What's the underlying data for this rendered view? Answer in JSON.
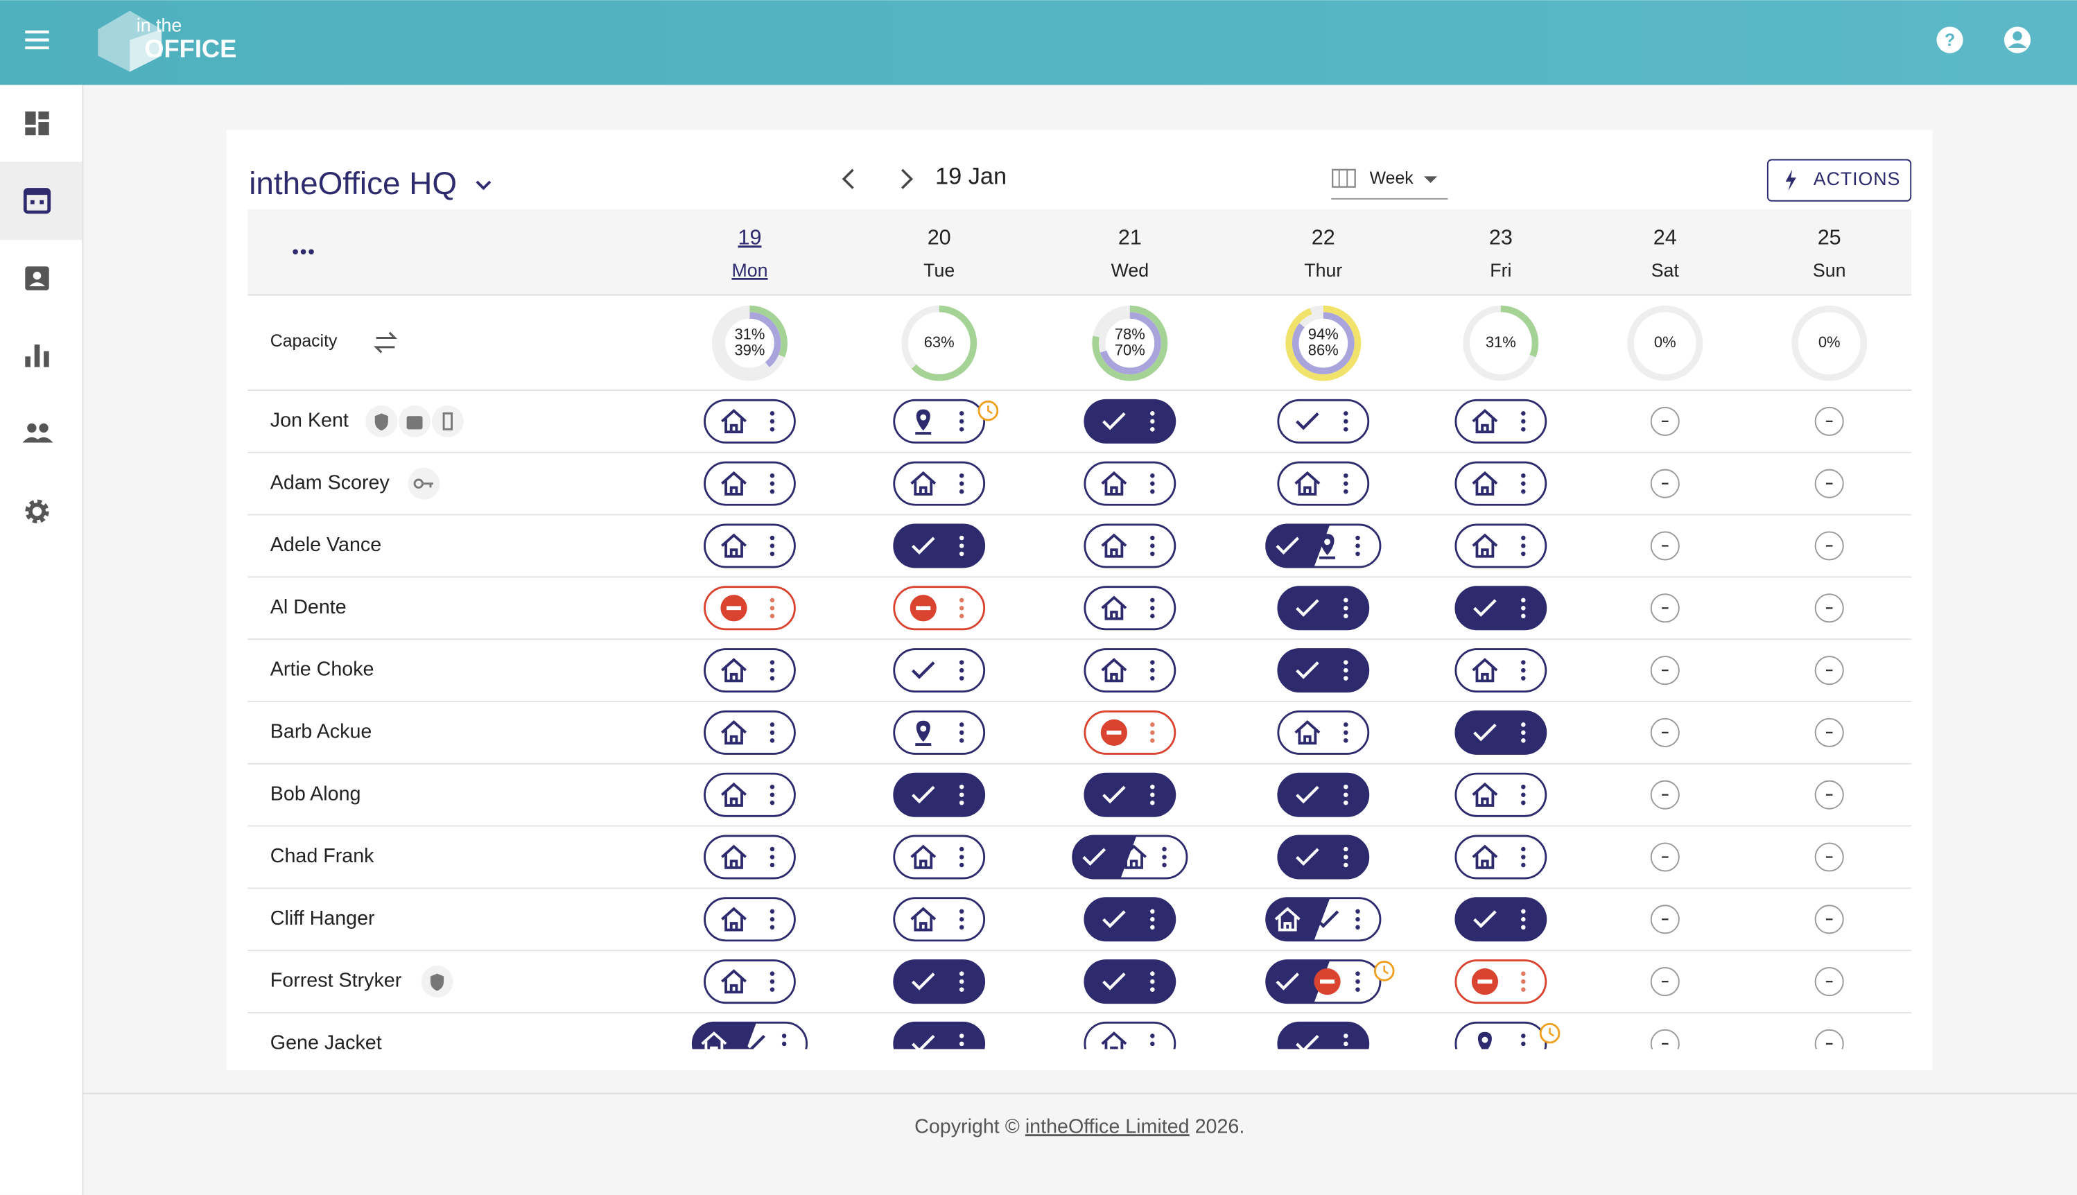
{
  "header": {
    "logo_small": "in the",
    "logo_big": "OFFICE"
  },
  "toolbar": {
    "location": "intheOffice HQ",
    "date": "19 Jan",
    "view": "Week",
    "actions": "ACTIONS"
  },
  "table": {
    "capacity_label": "Capacity",
    "columns": [
      {
        "day": "19",
        "weekday": "Mon",
        "capacity": [
          31,
          39
        ],
        "capacity_labels": [
          "31%",
          "39%"
        ]
      },
      {
        "day": "20",
        "weekday": "Tue",
        "capacity": [
          63
        ],
        "capacity_labels": [
          "63%"
        ]
      },
      {
        "day": "21",
        "weekday": "Wed",
        "capacity": [
          78,
          70
        ],
        "capacity_labels": [
          "78%",
          "70%"
        ]
      },
      {
        "day": "22",
        "weekday": "Thur",
        "capacity": [
          94,
          86
        ],
        "capacity_labels": [
          "94%",
          "86%"
        ]
      },
      {
        "day": "23",
        "weekday": "Fri",
        "capacity": [
          31
        ],
        "capacity_labels": [
          "31%"
        ]
      },
      {
        "day": "24",
        "weekday": "Sat",
        "capacity": [
          0
        ],
        "capacity_labels": [
          "0%"
        ]
      },
      {
        "day": "25",
        "weekday": "Sun",
        "capacity": [
          0
        ],
        "capacity_labels": [
          "0%"
        ]
      }
    ],
    "rows": [
      "Jon Kent",
      "Adam Scorey",
      "Adele Vance",
      "Al Dente",
      "Artie Choke",
      "Barb Ackue",
      "Bob Along",
      "Chad Frank",
      "Cliff Hanger",
      "Forrest Stryker",
      "Gene Jacket"
    ]
  },
  "footer": {
    "prefix": "Copyright © ",
    "link": "intheOffice Limited",
    "suffix": " 2026."
  }
}
